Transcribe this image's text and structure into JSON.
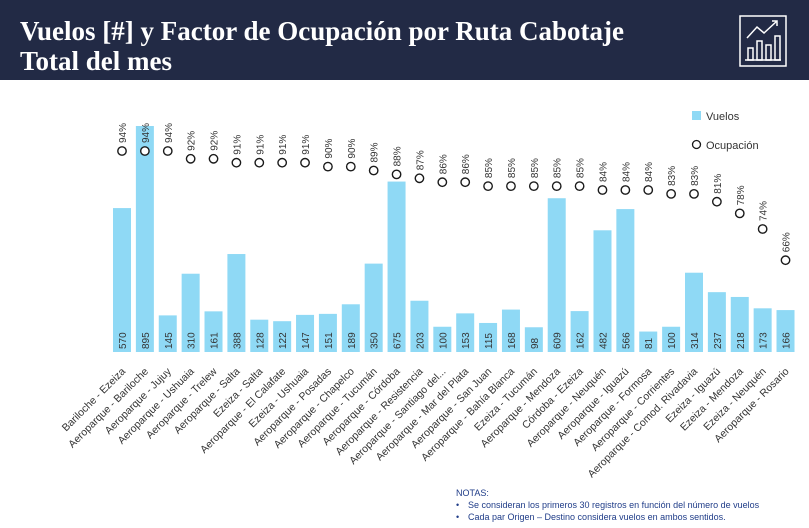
{
  "header": {
    "title_line1": "Vuelos [#] y Factor de Ocupación por Ruta Cabotaje",
    "title_line2": "Total del mes",
    "background": "#222a45",
    "logo_icon": "chart-bar-logo-icon"
  },
  "notes": {
    "heading": "NOTAS:",
    "items": [
      "Se consideran los primeros 30 registros en función del número de vuelos",
      "Cada par Origen – Destino considera vuelos en ambos sentidos."
    ]
  },
  "chart_data": {
    "type": "bar",
    "title": "",
    "xlabel": "",
    "ylabel": "",
    "grid": false,
    "legend_position": "top-right",
    "bar_color": "#8fd9f5",
    "marker_color": "#1a1a1a",
    "categories": [
      "Bariloche - Ezeiza",
      "Aeroparque - Bariloche",
      "Aeroparque - Jujuy",
      "Aeroparque - Ushuaia",
      "Aeroparque - Trelew",
      "Aeroparque - Salta",
      "Ezeiza - Salta",
      "Aeroparque - El Calafate",
      "Ezeiza - Ushuaia",
      "Aeroparque - Posadas",
      "Aeroparque - Chapelco",
      "Aeroparque - Tucumán",
      "Aeroparque - Córdoba",
      "Aeroparque - Resistencia",
      "Aeroparque - Santiago del...",
      "Aeroparque - Mar del Plata",
      "Aeroparque - San Juan",
      "Aeroparque - Bahía Blanca",
      "Ezeiza - Tucumán",
      "Aeroparque - Mendoza",
      "Córdoba - Ezeiza",
      "Aeroparque - Neuquén",
      "Aeroparque - Iguazú",
      "Aeroparque - Formosa",
      "Aeroparque - Corrientes",
      "Aeroparque - Comod. Rivadavia",
      "Ezeiza - Iguazú",
      "Ezeiza - Mendoza",
      "Ezeiza - Neuquén",
      "Aeroparque - Rosario"
    ],
    "series": [
      {
        "name": "Vuelos",
        "type": "bar",
        "values": [
          570,
          895,
          145,
          310,
          161,
          388,
          128,
          122,
          147,
          151,
          189,
          350,
          675,
          203,
          100,
          153,
          115,
          168,
          98,
          609,
          162,
          482,
          566,
          81,
          100,
          314,
          237,
          218,
          173,
          166
        ],
        "labels": [
          "570",
          "895",
          "145",
          "310",
          "161",
          "388",
          "128",
          "122",
          "147",
          "151",
          "189",
          "350",
          "675",
          "203",
          "100",
          "153",
          "115",
          "168",
          "98",
          "609",
          "162",
          "482",
          "566",
          "81",
          "100",
          "314",
          "237",
          "218",
          "173",
          "166"
        ]
      },
      {
        "name": "Ocupación",
        "type": "scatter",
        "values": [
          94,
          94,
          94,
          92,
          92,
          91,
          91,
          91,
          91,
          90,
          90,
          89,
          88,
          87,
          86,
          86,
          85,
          85,
          85,
          85,
          85,
          84,
          84,
          84,
          83,
          83,
          81,
          78,
          74,
          66
        ],
        "labels": [
          "94%",
          "94%",
          "94%",
          "92%",
          "92%",
          "91%",
          "91%",
          "91%",
          "91%",
          "90%",
          "90%",
          "89%",
          "88%",
          "87%",
          "86%",
          "86%",
          "85%",
          "85%",
          "85%",
          "85%",
          "85%",
          "84%",
          "84%",
          "84%",
          "83%",
          "83%",
          "81%",
          "78%",
          "74%",
          "66%"
        ]
      }
    ],
    "legend": [
      "Vuelos",
      "Ocupación"
    ]
  }
}
